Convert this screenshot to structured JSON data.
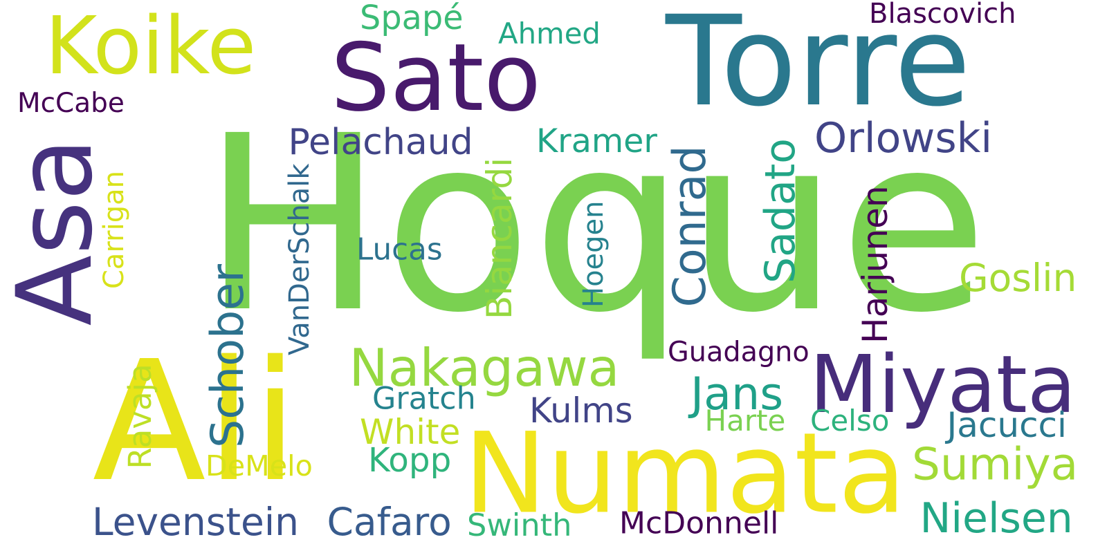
{
  "words": [
    {
      "text": "Hoque",
      "color": "#7ad151",
      "vertical": false
    },
    {
      "text": "Torre",
      "color": "#2a788e",
      "vertical": false
    },
    {
      "text": "Sato",
      "color": "#481a6c",
      "vertical": false
    },
    {
      "text": "Ali",
      "color": "#e8e419",
      "vertical": false
    },
    {
      "text": "Numata",
      "color": "#f1e51d",
      "vertical": false
    },
    {
      "text": "Koike",
      "color": "#d2e21b",
      "vertical": false
    },
    {
      "text": "Asa",
      "color": "#46327e",
      "vertical": true
    },
    {
      "text": "Miyata",
      "color": "#472d7b",
      "vertical": false
    },
    {
      "text": "Nakagawa",
      "color": "#95d840",
      "vertical": false
    },
    {
      "text": "Schober",
      "color": "#2c728e",
      "vertical": true
    },
    {
      "text": "Conrad",
      "color": "#306a8e",
      "vertical": true
    },
    {
      "text": "Sadato",
      "color": "#21a585",
      "vertical": true
    },
    {
      "text": "Levenstein",
      "color": "#3b528b",
      "vertical": false
    },
    {
      "text": "Cafaro",
      "color": "#375b8d",
      "vertical": false
    },
    {
      "text": "Sumiya",
      "color": "#a2da37",
      "vertical": false
    },
    {
      "text": "Jans",
      "color": "#1fa088",
      "vertical": false
    },
    {
      "text": "Nielsen",
      "color": "#22a785",
      "vertical": false
    },
    {
      "text": "Biancardi",
      "color": "#95d840",
      "vertical": true
    },
    {
      "text": "Orlowski",
      "color": "#414487",
      "vertical": false
    },
    {
      "text": "Pelachaud",
      "color": "#414487",
      "vertical": false
    },
    {
      "text": "Jacucci",
      "color": "#2a788e",
      "vertical": false
    },
    {
      "text": "Goslin",
      "color": "#a5db36",
      "vertical": false
    },
    {
      "text": "Kopp",
      "color": "#2fb47c",
      "vertical": false
    },
    {
      "text": "Kramer",
      "color": "#20a486",
      "vertical": false
    },
    {
      "text": "Ahmed",
      "color": "#22a785",
      "vertical": false
    },
    {
      "text": "Harjunen",
      "color": "#440154",
      "vertical": true
    },
    {
      "text": "Kulms",
      "color": "#414487",
      "vertical": false
    },
    {
      "text": "Swinth",
      "color": "#35b779",
      "vertical": false
    },
    {
      "text": "McDonnell",
      "color": "#440154",
      "vertical": false
    },
    {
      "text": "Spapé",
      "color": "#3bbb75",
      "vertical": false
    },
    {
      "text": "Blascovich",
      "color": "#440154",
      "vertical": false
    },
    {
      "text": "White",
      "color": "#c2df23",
      "vertical": false
    },
    {
      "text": "Guadagno",
      "color": "#440154",
      "vertical": false
    },
    {
      "text": "Ravaja",
      "color": "#bddf26",
      "vertical": true
    },
    {
      "text": "VanDerSchalk",
      "color": "#31688e",
      "vertical": true
    },
    {
      "text": "Carrigan",
      "color": "#d8e219",
      "vertical": true
    },
    {
      "text": "Lucas",
      "color": "#2c728e",
      "vertical": false
    },
    {
      "text": "Gratch",
      "color": "#25838e",
      "vertical": false
    },
    {
      "text": "Hoegen",
      "color": "#26828e",
      "vertical": true
    },
    {
      "text": "Harte",
      "color": "#7ad151",
      "vertical": false
    },
    {
      "text": "Celso",
      "color": "#2db27d",
      "vertical": false
    },
    {
      "text": "DeMelo",
      "color": "#d8e219",
      "vertical": false
    },
    {
      "text": "McCabe",
      "color": "#440154",
      "vertical": false
    }
  ]
}
